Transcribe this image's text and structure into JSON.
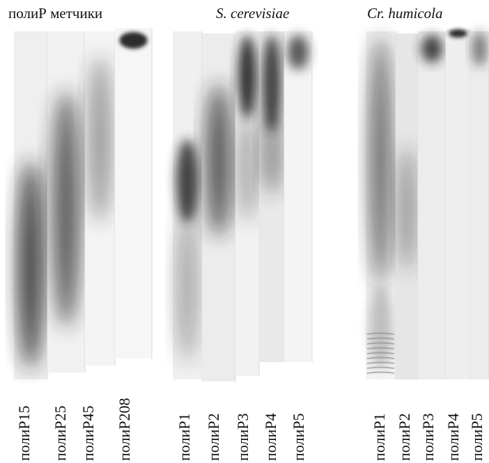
{
  "groups": [
    {
      "title": "полиР метчики",
      "lanes": [
        "полиР15",
        "полиР25",
        "полиР45",
        "полиР208"
      ]
    },
    {
      "title": "S. cerevisiae",
      "lanes": [
        "полиР1",
        "полиР2",
        "полиР3",
        "полиР4",
        "полиР5"
      ]
    },
    {
      "title": "Cr. humicola",
      "lanes": [
        "полиР1",
        "полиР2",
        "полиР3",
        "полиР4",
        "полиР5"
      ]
    }
  ]
}
